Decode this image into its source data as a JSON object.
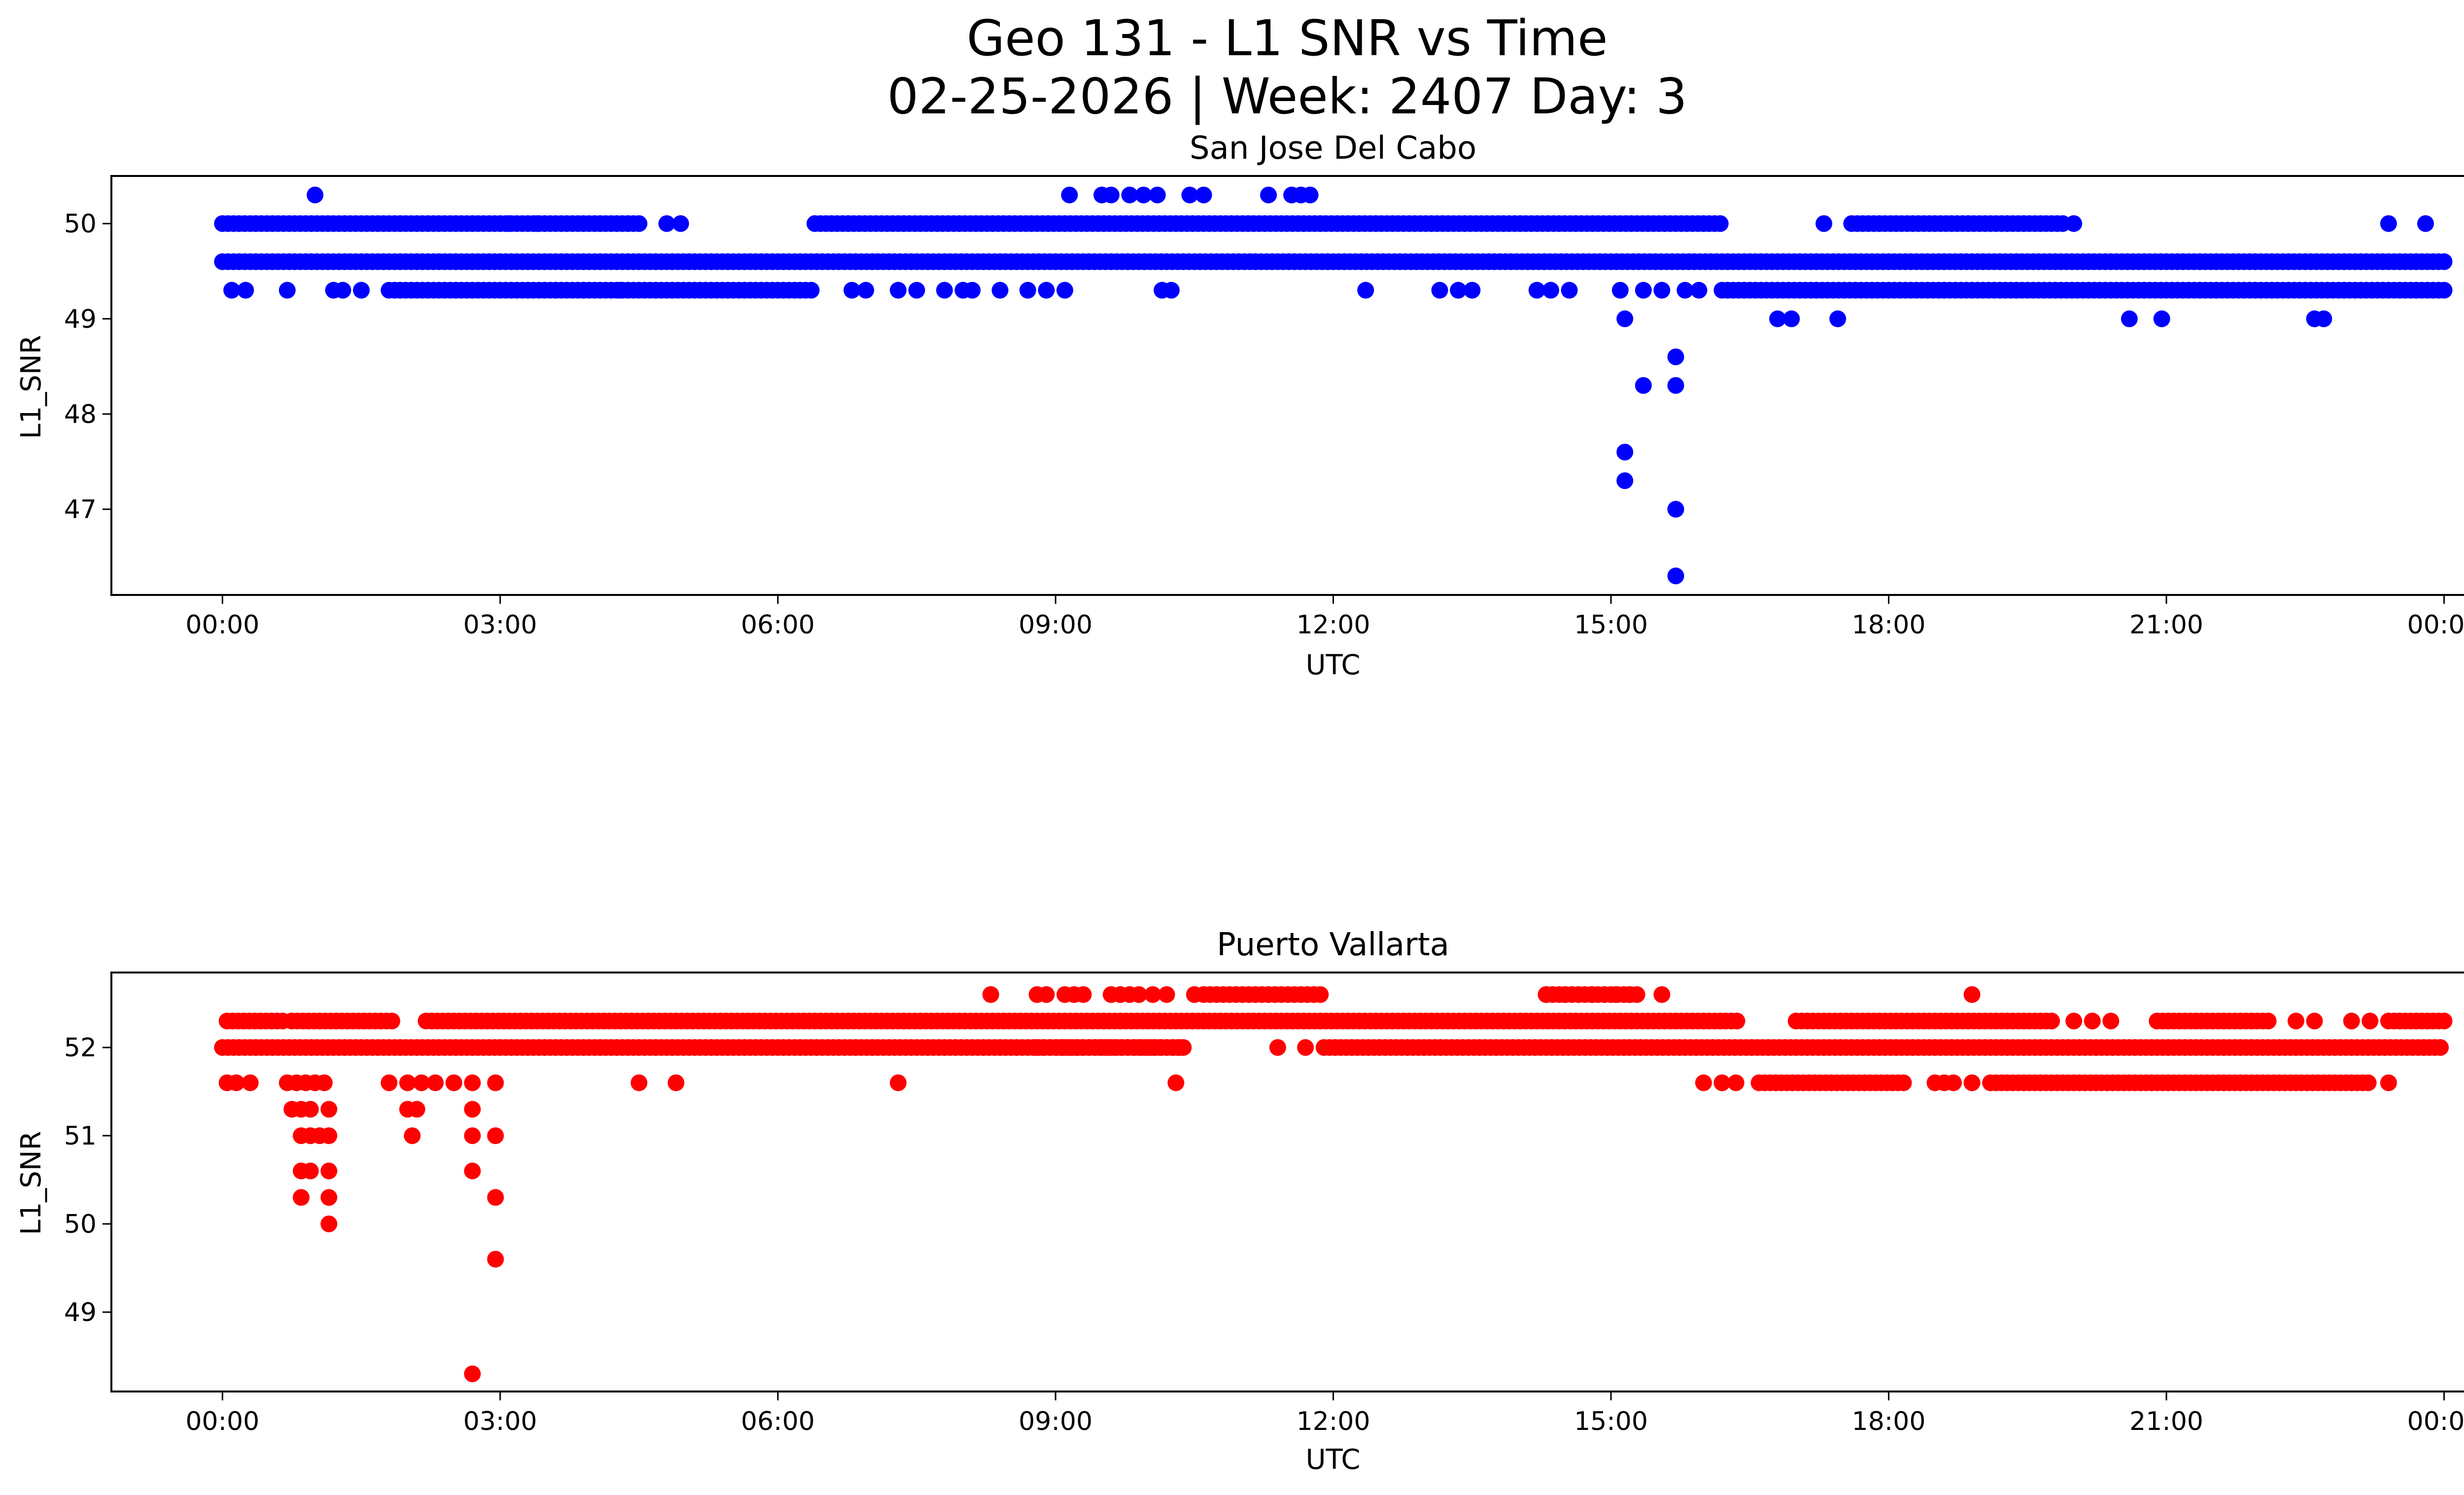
{
  "figure": {
    "title_line1": "Geo 131 - L1 SNR vs Time",
    "title_line2": "02-25-2026 | Week: 2407 Day: 3"
  },
  "chart_data": [
    {
      "type": "scatter",
      "title": "San Jose Del Cabo",
      "xlabel": "UTC",
      "ylabel": "L1_SNR",
      "color": "#0000ff",
      "x_unit": "hours",
      "xlim": [
        -1.2,
        25.2
      ],
      "ylim": [
        46.1,
        50.5
      ],
      "xticks": [
        0,
        3,
        6,
        9,
        12,
        15,
        18,
        21,
        24
      ],
      "xtick_labels": [
        "00:00",
        "03:00",
        "06:00",
        "09:00",
        "12:00",
        "15:00",
        "18:00",
        "21:00",
        "00:00"
      ],
      "yticks": [
        47,
        48,
        49,
        50
      ],
      "ytick_labels": [
        "47",
        "48",
        "49",
        "50"
      ],
      "bands": [
        {
          "y": 49.6,
          "ranges": [
            [
              0,
              24
            ]
          ]
        },
        {
          "y": 50.0,
          "ranges": [
            [
              0,
              4.5
            ],
            [
              6.4,
              16.2
            ],
            [
              17.6,
              19.9
            ]
          ]
        },
        {
          "y": 49.3,
          "ranges": [
            [
              1.8,
              6.4
            ],
            [
              16.2,
              24
            ]
          ]
        }
      ],
      "points": [
        [
          0.1,
          49.3
        ],
        [
          0.25,
          49.3
        ],
        [
          0.7,
          49.3
        ],
        [
          1.2,
          49.3
        ],
        [
          1.3,
          49.3
        ],
        [
          1.5,
          49.3
        ],
        [
          4.3,
          49.3
        ],
        [
          3.6,
          49.3
        ],
        [
          3.9,
          49.3
        ],
        [
          6.8,
          49.3
        ],
        [
          6.95,
          49.3
        ],
        [
          7.3,
          49.3
        ],
        [
          7.5,
          49.3
        ],
        [
          7.8,
          49.3
        ],
        [
          8.0,
          49.3
        ],
        [
          8.1,
          49.3
        ],
        [
          8.4,
          49.3
        ],
        [
          8.7,
          49.3
        ],
        [
          8.9,
          49.3
        ],
        [
          9.1,
          49.3
        ],
        [
          10.15,
          49.3
        ],
        [
          10.25,
          49.3
        ],
        [
          12.35,
          49.3
        ],
        [
          13.15,
          49.3
        ],
        [
          13.35,
          49.3
        ],
        [
          13.5,
          49.3
        ],
        [
          14.2,
          49.3
        ],
        [
          14.35,
          49.3
        ],
        [
          14.55,
          49.3
        ],
        [
          15.1,
          49.3
        ],
        [
          15.35,
          49.3
        ],
        [
          15.55,
          49.3
        ],
        [
          15.8,
          49.3
        ],
        [
          15.95,
          49.3
        ],
        [
          3.1,
          50.0
        ],
        [
          3.4,
          50.0
        ],
        [
          4.8,
          50.0
        ],
        [
          4.95,
          50.0
        ],
        [
          17.3,
          50.0
        ],
        [
          18.5,
          50.0
        ],
        [
          20.0,
          50.0
        ],
        [
          23.4,
          50.0
        ],
        [
          23.8,
          50.0
        ],
        [
          1.0,
          50.3
        ],
        [
          9.15,
          50.3
        ],
        [
          9.5,
          50.3
        ],
        [
          9.6,
          50.3
        ],
        [
          9.8,
          50.3
        ],
        [
          9.95,
          50.3
        ],
        [
          10.1,
          50.3
        ],
        [
          10.45,
          50.3
        ],
        [
          10.6,
          50.3
        ],
        [
          11.3,
          50.3
        ],
        [
          11.55,
          50.3
        ],
        [
          11.65,
          50.3
        ],
        [
          11.75,
          50.3
        ],
        [
          16.8,
          49.0
        ],
        [
          16.95,
          49.0
        ],
        [
          17.45,
          49.0
        ],
        [
          20.6,
          49.0
        ],
        [
          20.95,
          49.0
        ],
        [
          22.6,
          49.0
        ],
        [
          22.7,
          49.0
        ],
        [
          15.15,
          49.0
        ],
        [
          15.7,
          48.6
        ],
        [
          15.7,
          48.3
        ],
        [
          15.35,
          48.3
        ],
        [
          15.15,
          47.6
        ],
        [
          15.15,
          47.3
        ],
        [
          15.7,
          47.0
        ],
        [
          15.7,
          46.3
        ]
      ]
    },
    {
      "type": "scatter",
      "title": "Puerto Vallarta",
      "xlabel": "UTC",
      "ylabel": "L1_SNR",
      "color": "#ff0000",
      "x_unit": "hours",
      "xlim": [
        -1.2,
        25.2
      ],
      "ylim": [
        48.1,
        52.85
      ],
      "xticks": [
        0,
        3,
        6,
        9,
        12,
        15,
        18,
        21,
        24
      ],
      "xtick_labels": [
        "00:00",
        "03:00",
        "06:00",
        "09:00",
        "12:00",
        "15:00",
        "18:00",
        "21:00",
        "00:00"
      ],
      "yticks": [
        49,
        50,
        51,
        52
      ],
      "ytick_labels": [
        "49",
        "50",
        "51",
        "52"
      ],
      "bands": [
        {
          "y": 52.0,
          "ranges": [
            [
              0,
              10.4
            ],
            [
              11.9,
              24
            ]
          ]
        },
        {
          "y": 52.3,
          "ranges": [
            [
              0.05,
              0.7
            ],
            [
              0.75,
              1.85
            ],
            [
              2.2,
              16.4
            ],
            [
              17.0,
              19.8
            ],
            [
              20.9,
              22.1
            ],
            [
              23.4,
              24
            ]
          ]
        },
        {
          "y": 51.6,
          "ranges": [
            [
              16.6,
              18.2
            ],
            [
              19.1,
              23.2
            ]
          ]
        }
      ],
      "points": [
        [
          0.05,
          51.6
        ],
        [
          0.15,
          51.6
        ],
        [
          0.3,
          51.6
        ],
        [
          0.7,
          51.6
        ],
        [
          0.8,
          51.6
        ],
        [
          0.9,
          51.6
        ],
        [
          1.0,
          51.6
        ],
        [
          1.1,
          51.6
        ],
        [
          1.8,
          51.6
        ],
        [
          2.0,
          51.6
        ],
        [
          2.15,
          51.6
        ],
        [
          2.3,
          51.6
        ],
        [
          2.5,
          51.6
        ],
        [
          2.7,
          51.6
        ],
        [
          2.95,
          51.6
        ],
        [
          4.5,
          51.6
        ],
        [
          4.9,
          51.6
        ],
        [
          7.3,
          51.6
        ],
        [
          10.3,
          51.6
        ],
        [
          16.0,
          51.6
        ],
        [
          16.2,
          51.6
        ],
        [
          16.35,
          51.6
        ],
        [
          18.5,
          51.6
        ],
        [
          18.6,
          51.6
        ],
        [
          18.7,
          51.6
        ],
        [
          18.9,
          51.6
        ],
        [
          23.4,
          51.6
        ],
        [
          0.75,
          51.3
        ],
        [
          0.85,
          51.3
        ],
        [
          0.95,
          51.3
        ],
        [
          1.15,
          51.3
        ],
        [
          2.0,
          51.3
        ],
        [
          2.1,
          51.3
        ],
        [
          2.7,
          51.3
        ],
        [
          0.85,
          51.0
        ],
        [
          0.95,
          51.0
        ],
        [
          1.05,
          51.0
        ],
        [
          1.15,
          51.0
        ],
        [
          2.05,
          51.0
        ],
        [
          2.7,
          51.0
        ],
        [
          2.95,
          51.0
        ],
        [
          0.85,
          50.6
        ],
        [
          0.95,
          50.6
        ],
        [
          1.15,
          50.6
        ],
        [
          2.7,
          50.6
        ],
        [
          0.85,
          50.3
        ],
        [
          1.15,
          50.3
        ],
        [
          2.95,
          50.3
        ],
        [
          1.15,
          50.0
        ],
        [
          2.95,
          49.6
        ],
        [
          2.7,
          48.3
        ],
        [
          8.3,
          52.6
        ],
        [
          8.8,
          52.6
        ],
        [
          8.9,
          52.6
        ],
        [
          9.1,
          52.6
        ],
        [
          9.2,
          52.6
        ],
        [
          9.3,
          52.6
        ],
        [
          9.6,
          52.6
        ],
        [
          9.7,
          52.6
        ],
        [
          9.8,
          52.6
        ],
        [
          9.9,
          52.6
        ],
        [
          10.05,
          52.6
        ],
        [
          10.2,
          52.6
        ],
        [
          10.5,
          52.6
        ],
        [
          14.3,
          52.6
        ],
        [
          14.5,
          52.6
        ],
        [
          14.65,
          52.6
        ],
        [
          14.8,
          52.6
        ],
        [
          15.05,
          52.6
        ],
        [
          15.2,
          52.6
        ],
        [
          15.55,
          52.6
        ],
        [
          18.9,
          52.6
        ],
        [
          11.4,
          52.0
        ],
        [
          11.7,
          52.0
        ],
        [
          20.4,
          52.3
        ],
        [
          22.4,
          52.3
        ],
        [
          22.6,
          52.3
        ],
        [
          23.0,
          52.3
        ],
        [
          23.2,
          52.3
        ],
        [
          20.0,
          52.3
        ],
        [
          20.2,
          52.3
        ]
      ],
      "point_ranges": [
        {
          "y": 52.6,
          "range": [
            10.6,
            11.9
          ]
        },
        {
          "y": 52.6,
          "range": [
            14.3,
            15.3
          ]
        },
        {
          "y": 52.0,
          "range": [
            8.8,
            10.4
          ]
        }
      ]
    }
  ]
}
